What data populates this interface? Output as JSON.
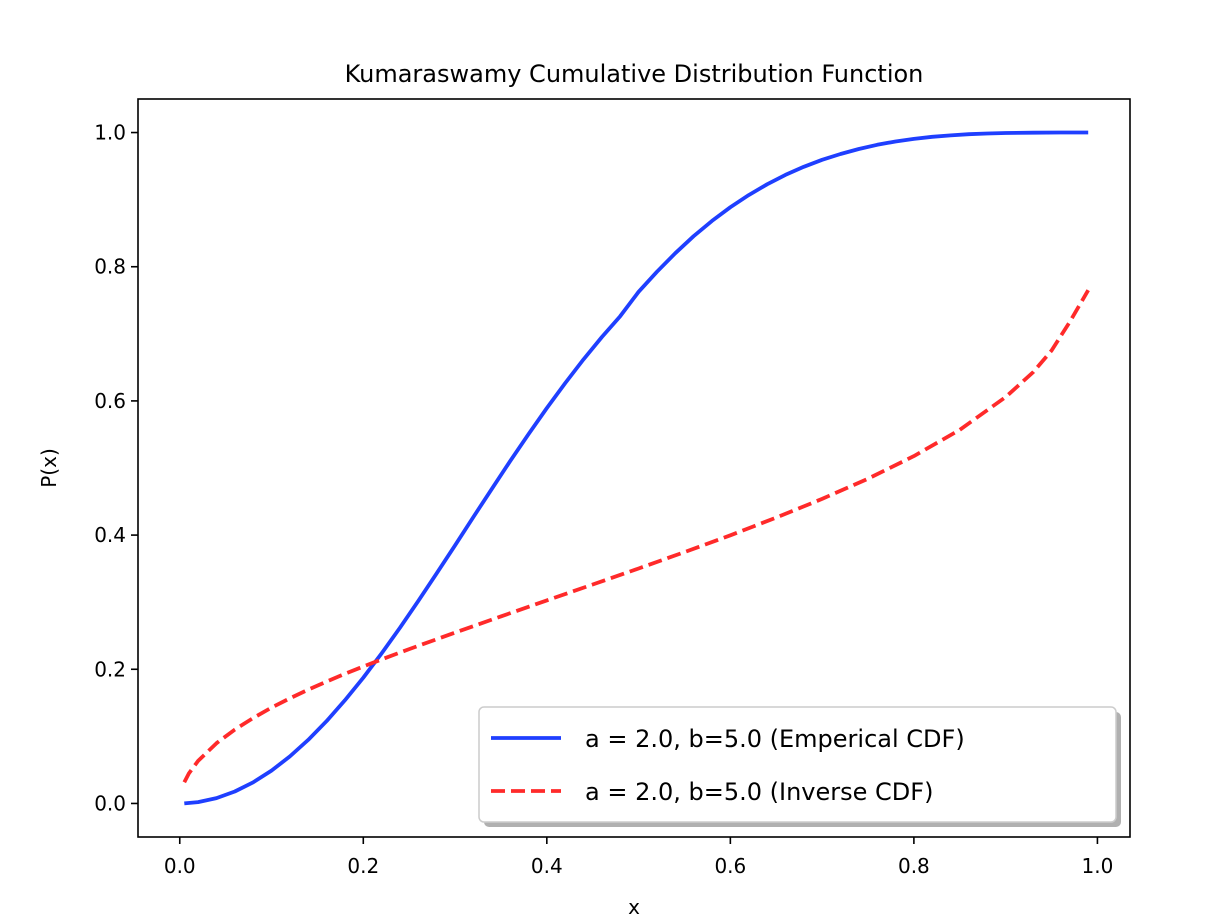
{
  "chart_data": {
    "type": "line",
    "title": "Kumaraswamy Cumulative Distribution Function",
    "xlabel": "x",
    "ylabel": "P(x)",
    "xlim": [
      -0.0455,
      1.0355
    ],
    "ylim": [
      -0.05,
      1.05
    ],
    "xticks": [
      0.0,
      0.2,
      0.4,
      0.6,
      0.8,
      1.0
    ],
    "xtick_labels": [
      "0.0",
      "0.2",
      "0.4",
      "0.6",
      "0.8",
      "1.0"
    ],
    "yticks": [
      0.0,
      0.2,
      0.4,
      0.6,
      0.8,
      1.0
    ],
    "ytick_labels": [
      "0.0",
      "0.2",
      "0.4",
      "0.6",
      "0.8",
      "1.0"
    ],
    "grid": false,
    "legend_position": "lower-right",
    "series": [
      {
        "name": "a = 2.0, b=5.0 (Emperical CDF)",
        "color": "#1f3fff",
        "style": "solid",
        "points": [
          [
            0.005,
            0.0001
          ],
          [
            0.02,
            0.002
          ],
          [
            0.04,
            0.008
          ],
          [
            0.06,
            0.0178
          ],
          [
            0.08,
            0.0315
          ],
          [
            0.1,
            0.049
          ],
          [
            0.12,
            0.0701
          ],
          [
            0.14,
            0.0947
          ],
          [
            0.16,
            0.1227
          ],
          [
            0.18,
            0.1537
          ],
          [
            0.2,
            0.1875
          ],
          [
            0.22,
            0.2237
          ],
          [
            0.24,
            0.262
          ],
          [
            0.26,
            0.3019
          ],
          [
            0.28,
            0.343
          ],
          [
            0.3,
            0.3848
          ],
          [
            0.32,
            0.4269
          ],
          [
            0.34,
            0.4688
          ],
          [
            0.36,
            0.5101
          ],
          [
            0.38,
            0.5504
          ],
          [
            0.4,
            0.5893
          ],
          [
            0.42,
            0.6266
          ],
          [
            0.44,
            0.6619
          ],
          [
            0.46,
            0.6952
          ],
          [
            0.48,
            0.7263
          ],
          [
            0.5,
            0.7627
          ],
          [
            0.52,
            0.7924
          ],
          [
            0.54,
            0.8202
          ],
          [
            0.56,
            0.8455
          ],
          [
            0.58,
            0.8683
          ],
          [
            0.6,
            0.8887
          ],
          [
            0.62,
            0.9068
          ],
          [
            0.64,
            0.9228
          ],
          [
            0.66,
            0.9368
          ],
          [
            0.68,
            0.9489
          ],
          [
            0.7,
            0.9594
          ],
          [
            0.72,
            0.968
          ],
          [
            0.74,
            0.9755
          ],
          [
            0.76,
            0.9817
          ],
          [
            0.78,
            0.9867
          ],
          [
            0.8,
            0.9906
          ],
          [
            0.82,
            0.9936
          ],
          [
            0.84,
            0.9958
          ],
          [
            0.86,
            0.9975
          ],
          [
            0.88,
            0.9986
          ],
          [
            0.9,
            0.9993
          ],
          [
            0.93,
            0.9998
          ],
          [
            0.96,
            1.0
          ],
          [
            0.99,
            1.0
          ]
        ]
      },
      {
        "name": "a = 2.0, b=5.0 (Inverse CDF)",
        "color": "#ff2a2a",
        "style": "dashed",
        "points": [
          [
            0.005,
            0.0317
          ],
          [
            0.01,
            0.0448
          ],
          [
            0.02,
            0.0634
          ],
          [
            0.04,
            0.0898
          ],
          [
            0.06,
            0.1101
          ],
          [
            0.08,
            0.1274
          ],
          [
            0.1,
            0.1428
          ],
          [
            0.12,
            0.1567
          ],
          [
            0.14,
            0.1696
          ],
          [
            0.16,
            0.1817
          ],
          [
            0.18,
            0.1932
          ],
          [
            0.2,
            0.2042
          ],
          [
            0.22,
            0.2147
          ],
          [
            0.25,
            0.23
          ],
          [
            0.3,
            0.2547
          ],
          [
            0.35,
            0.2788
          ],
          [
            0.4,
            0.3026
          ],
          [
            0.45,
            0.3263
          ],
          [
            0.5,
            0.3502
          ],
          [
            0.55,
            0.3746
          ],
          [
            0.6,
            0.3997
          ],
          [
            0.65,
            0.426
          ],
          [
            0.7,
            0.4539
          ],
          [
            0.75,
            0.4841
          ],
          [
            0.8,
            0.5178
          ],
          [
            0.85,
            0.557
          ],
          [
            0.9,
            0.6058
          ],
          [
            0.93,
            0.643
          ],
          [
            0.95,
            0.675
          ],
          [
            0.97,
            0.718
          ],
          [
            0.99,
            0.765
          ]
        ]
      }
    ]
  }
}
